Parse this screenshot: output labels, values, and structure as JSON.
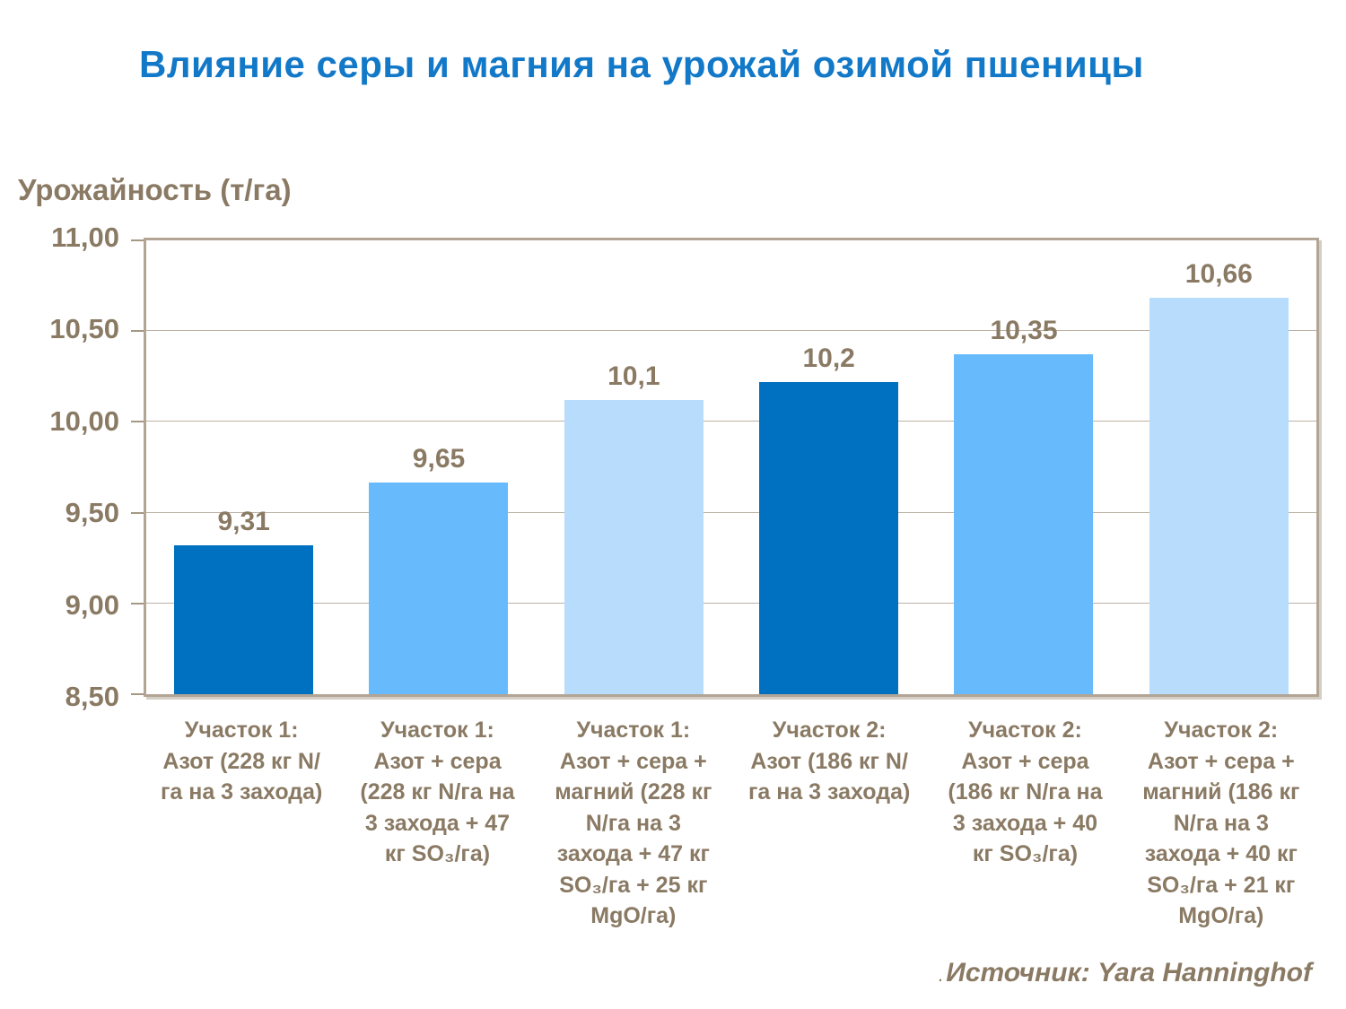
{
  "title": "Влияние серы и магния на урожай озимой пшеницы",
  "y_axis_title": "Урожайность (т/га)",
  "source_prefix": ". ",
  "source": "Источник: Yara Hanninghof",
  "colors": {
    "title": "#1278C8",
    "text": "#8A7A64",
    "bar_dark": "#0070C0",
    "bar_medium": "#67BAFB",
    "bar_light": "#B8DDFC",
    "plot_border": "#B2A595",
    "gridline": "#BCB1A4"
  },
  "chart_data": {
    "type": "bar",
    "title": "Влияние серы и магния на урожай озимой пшеницы",
    "xlabel": "",
    "ylabel": "Урожайность (т/га)",
    "ylim": [
      8.5,
      11.0
    ],
    "ytick_step": 0.5,
    "ytick_labels_top_to_bottom": [
      "11,00",
      "10,50",
      "10,00",
      "9,50",
      "9,00",
      "8,50"
    ],
    "grid": true,
    "legend": false,
    "categories": [
      "Участок 1: Азот (228 кг N/га на 3 захода)",
      "Участок 1: Азот + сера (228 кг N/га на 3 захода + 47 кг SO₃/га)",
      "Участок 1: Азот + сера + магний (228 кг N/га на 3 захода + 47 кг SO₃/га + 25 кг MgO/га)",
      "Участок 2: Азот (186 кг N/га на 3 захода)",
      "Участок 2: Азот + сера (186 кг N/га на 3 захода + 40 кг SO₃/га)",
      "Участок 2: Азот + сера + магний (186 кг N/га на 3 захода + 40 кг SO₃/га + 21 кг MgO/га)"
    ],
    "values": [
      9.31,
      9.65,
      10.1,
      10.2,
      10.35,
      10.66
    ],
    "value_labels": [
      "9,31",
      "9,65",
      "10,1",
      "10,2",
      "10,35",
      "10,66"
    ],
    "bar_color_keys": [
      "dark",
      "medium",
      "light",
      "dark",
      "medium",
      "light"
    ]
  }
}
